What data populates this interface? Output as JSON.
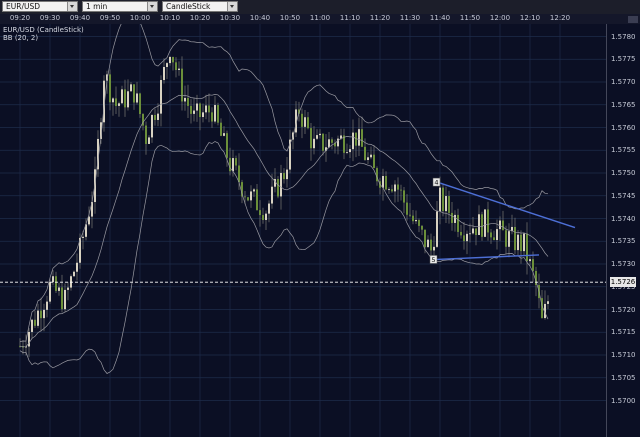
{
  "toolbar": {
    "symbol": "EUR/USD",
    "timeframe": "1 min",
    "chart_type": "CandleStick"
  },
  "chart_title": "EUR/USD (CandleStick)",
  "indicator_title": "BB (20, 2)",
  "current_price": "1.5726",
  "colors": {
    "background": "#0b0f24",
    "grid": "#1e2c4a",
    "bull_candle": "#d8d2c2",
    "bear_candle": "#6b8f3a",
    "bands": "#9a9aa2",
    "trendline": "#4d6fd6",
    "current_price_line": "#ffffff"
  },
  "chart_data": {
    "type": "candlestick",
    "x_ticks": [
      "09:20",
      "09:30",
      "09:40",
      "09:50",
      "10:00",
      "10:10",
      "10:20",
      "10:30",
      "10:40",
      "10:50",
      "11:00",
      "11:10",
      "11:20",
      "11:30",
      "11:40",
      "11:50",
      "12:00",
      "12:10",
      "12:20"
    ],
    "y_ticks": [
      "1.5780",
      "1.5775",
      "1.5770",
      "1.5765",
      "1.5760",
      "1.5755",
      "1.5750",
      "1.5745",
      "1.5740",
      "1.5735",
      "1.5730",
      "1.5725",
      "1.5720",
      "1.5715",
      "1.5710",
      "1.5705",
      "1.5700"
    ],
    "ylim": [
      1.5698,
      1.5785
    ],
    "indicator": "Bollinger Bands (20, 2)",
    "markers": [
      {
        "label": "4",
        "time": "11:39",
        "price": 1.5748
      },
      {
        "label": "5",
        "time": "11:38",
        "price": 1.5731
      }
    ],
    "trendlines": [
      {
        "from": [
          "11:39",
          1.5748
        ],
        "to": [
          "12:25",
          1.5738
        ]
      },
      {
        "from": [
          "11:39",
          1.5731
        ],
        "to": [
          "12:13",
          1.5732
        ]
      }
    ],
    "current_price": 1.5726
  }
}
